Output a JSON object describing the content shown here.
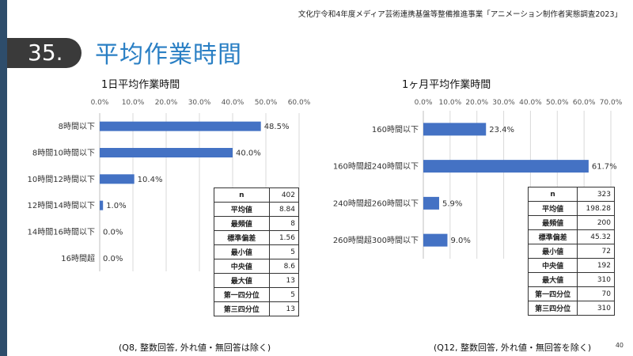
{
  "header": {
    "note": "文化庁令和4年度メディア芸術連携基盤等整備推進事業「アニメーション制作者実態調査2023」",
    "section_number": "35.",
    "title": "平均作業時間",
    "page_number": "40"
  },
  "chart_data": [
    {
      "type": "bar",
      "orientation": "horizontal",
      "title": "1日平均作業時間",
      "categories": [
        "8時間以下",
        "8時間10時間以下",
        "10時間12時間以下",
        "12時間14時間以下",
        "14時間16時間以下",
        "16時間超"
      ],
      "values": [
        48.5,
        40.0,
        10.4,
        1.0,
        0.0,
        0.0
      ],
      "value_labels": [
        "48.5%",
        "40.0%",
        "10.4%",
        "1.0%",
        "0.0%",
        "0.0%"
      ],
      "xlim": [
        0,
        60
      ],
      "ticks": [
        0,
        10,
        20,
        30,
        40,
        50,
        60
      ],
      "tick_labels": [
        "0.0%",
        "10.0%",
        "20.0%",
        "30.0%",
        "40.0%",
        "50.0%",
        "60.0%"
      ],
      "color": "#4472c4"
    },
    {
      "type": "bar",
      "orientation": "horizontal",
      "title": "1ヶ月平均作業時間",
      "categories": [
        "160時間以下",
        "160時間超240時間以下",
        "240時間超260時間以下",
        "260時間超300時間以下"
      ],
      "values": [
        23.4,
        61.7,
        5.9,
        9.0
      ],
      "value_labels": [
        "23.4%",
        "61.7%",
        "5.9%",
        "9.0%"
      ],
      "xlim": [
        0,
        70
      ],
      "ticks": [
        0,
        10,
        20,
        30,
        40,
        50,
        60,
        70
      ],
      "tick_labels": [
        "0.0%",
        "10.0%",
        "20.0%",
        "30.0%",
        "40.0%",
        "50.0%",
        "60.0%",
        "70.0%"
      ],
      "color": "#4472c4"
    }
  ],
  "stats_daily": [
    {
      "label": "n",
      "value": "402"
    },
    {
      "label": "平均値",
      "value": "8.84"
    },
    {
      "label": "最頻値",
      "value": "8"
    },
    {
      "label": "標準偏差",
      "value": "1.56"
    },
    {
      "label": "最小値",
      "value": "5"
    },
    {
      "label": "中央値",
      "value": "8.6"
    },
    {
      "label": "最大値",
      "value": "13"
    },
    {
      "label": "第一四分位",
      "value": "5"
    },
    {
      "label": "第三四分位",
      "value": "13"
    }
  ],
  "stats_monthly": [
    {
      "label": "n",
      "value": "323"
    },
    {
      "label": "平均値",
      "value": "198.28"
    },
    {
      "label": "最頻値",
      "value": "200"
    },
    {
      "label": "標準偏差",
      "value": "45.32"
    },
    {
      "label": "最小値",
      "value": "72"
    },
    {
      "label": "中央値",
      "value": "192"
    },
    {
      "label": "最大値",
      "value": "310"
    },
    {
      "label": "第一四分位",
      "value": "70"
    },
    {
      "label": "第三四分位",
      "value": "310"
    }
  ],
  "footnotes": {
    "daily": "(Q8, 整数回答, 外れ値・無回答は除く)",
    "monthly": "(Q12, 整数回答, 外れ値・無回答を除く)"
  }
}
